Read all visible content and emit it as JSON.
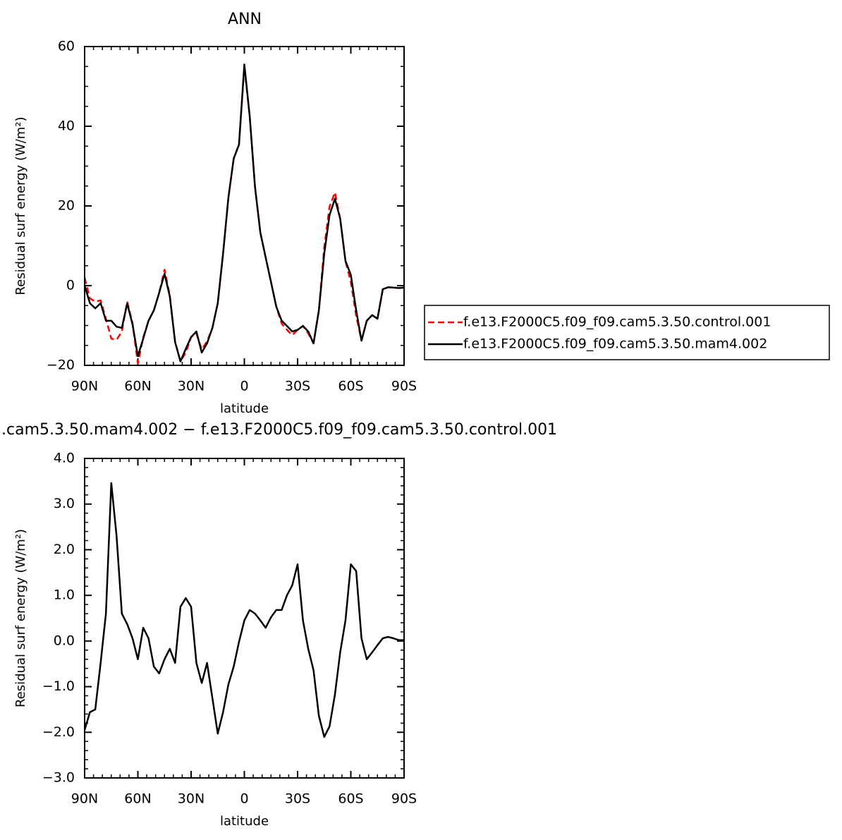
{
  "chart_data": [
    {
      "type": "line",
      "title": "ANN",
      "xlabel": "latitude",
      "ylabel": "Residual surf energy (W/m²)",
      "x": [
        90,
        87,
        84,
        81,
        78,
        75,
        72,
        69,
        66,
        63,
        60,
        57,
        54,
        51,
        48,
        45,
        42,
        39,
        36,
        33,
        30,
        27,
        24,
        21,
        18,
        15,
        12,
        9,
        6,
        3,
        0,
        -3,
        -6,
        -9,
        -12,
        -15,
        -18,
        -21,
        -24,
        -27,
        -30,
        -33,
        -36,
        -39,
        -42,
        -45,
        -48,
        -51,
        -54,
        -57,
        -60,
        -63,
        -66,
        -69,
        -72,
        -75,
        -78,
        -81,
        -84,
        -87,
        -90
      ],
      "series": [
        {
          "name": "f.e13.F2000C5.f09_f09.cam5.3.50.control.001",
          "color": "#ff0000",
          "dash": "dashed",
          "values": [
            2,
            -3.2,
            -4,
            -3.7,
            -8.3,
            -13.3,
            -13.6,
            -11.5,
            -4,
            -9.4,
            -19.5,
            -13,
            -8.8,
            -6.2,
            -1.8,
            4,
            -2.5,
            -14,
            -19,
            -16.8,
            -12.9,
            -12,
            -16,
            -14,
            -10.6,
            -4.4,
            8,
            22.1,
            31.9,
            35.4,
            55,
            42.5,
            24.8,
            13.3,
            7.1,
            0.9,
            -5.3,
            -9.5,
            -11.1,
            -12.4,
            -11.1,
            -10.1,
            -12,
            -14.5,
            -6.2,
            9.7,
            19.8,
            23.4,
            16.8,
            6.2,
            0.9,
            -7.6,
            -13.8,
            -8.8,
            -7.4,
            -8.3,
            -1,
            -0.4,
            -0.5,
            -0.6,
            -0.5
          ]
        },
        {
          "name": "f.e13.F2000C5.f09_f09.cam5.3.50.mam4.002",
          "color": "#000000",
          "dash": "solid",
          "values": [
            0,
            -4.4,
            -5.7,
            -4.4,
            -8.8,
            -8.8,
            -10.3,
            -10.6,
            -4.5,
            -9.7,
            -17.7,
            -13.3,
            -8.8,
            -6.2,
            -1.8,
            3,
            -2.7,
            -14.2,
            -19,
            -15.9,
            -12.9,
            -11.5,
            -16.8,
            -14.5,
            -10.6,
            -4.4,
            8,
            22.1,
            31.9,
            35.4,
            55.5,
            42.5,
            24.8,
            13.3,
            7.1,
            0.9,
            -5.3,
            -8.8,
            -10.1,
            -11.5,
            -11.1,
            -10.1,
            -11.5,
            -14.5,
            -6.2,
            8,
            17.7,
            21.8,
            16.8,
            6.2,
            2.7,
            -6.2,
            -13.8,
            -8.8,
            -7.4,
            -8.3,
            -0.9,
            -0.4,
            -0.5,
            -0.6,
            -0.5
          ]
        }
      ],
      "xlim": [
        90,
        -90
      ],
      "xticks": [
        {
          "value": 90,
          "label": "90N"
        },
        {
          "value": 60,
          "label": "60N"
        },
        {
          "value": 30,
          "label": "30N"
        },
        0,
        {
          "value": -30,
          "label": "30S"
        },
        {
          "value": -60,
          "label": "60S"
        },
        {
          "value": -90,
          "label": "90S"
        }
      ],
      "ylim": [
        -20,
        60
      ],
      "yticks": [
        {
          "value": -20,
          "label": "−20"
        },
        0,
        20,
        40,
        60
      ],
      "legend": "right"
    },
    {
      "type": "line",
      "title": ".cam5.3.50.mam4.002 − f.e13.F2000C5.f09_f09.cam5.3.50.control.001",
      "xlabel": "latitude",
      "ylabel": "Residual surf energy (W/m²)",
      "x": [
        90,
        87,
        84,
        81,
        78,
        75,
        72,
        69,
        66,
        63,
        60,
        57,
        54,
        51,
        48,
        45,
        42,
        39,
        36,
        33,
        30,
        27,
        24,
        21,
        18,
        15,
        12,
        9,
        6,
        3,
        0,
        -3,
        -6,
        -9,
        -12,
        -15,
        -18,
        -21,
        -24,
        -27,
        -30,
        -33,
        -36,
        -39,
        -42,
        -45,
        -48,
        -51,
        -54,
        -57,
        -60,
        -63,
        -66,
        -69,
        -72,
        -75,
        -78,
        -81,
        -84,
        -87,
        -90
      ],
      "series": [
        {
          "color": "#000000",
          "dash": "solid",
          "values": [
            -1.95,
            -1.56,
            -1.5,
            -0.48,
            0.6,
            3.46,
            2.3,
            0.6,
            0.37,
            0.06,
            -0.4,
            0.29,
            0.06,
            -0.56,
            -0.71,
            -0.4,
            -0.17,
            -0.48,
            0.75,
            0.94,
            0.75,
            -0.48,
            -0.92,
            -0.48,
            -1.25,
            -2.03,
            -1.56,
            -0.95,
            -0.56,
            -0.02,
            0.45,
            0.68,
            0.6,
            0.45,
            0.29,
            0.52,
            0.68,
            0.68,
            1,
            1.22,
            1.68,
            0.45,
            -0.17,
            -0.64,
            -1.64,
            -2.1,
            -1.87,
            -1.18,
            -0.25,
            0.45,
            1.68,
            1.53,
            0.06,
            -0.4,
            -0.25,
            -0.09,
            0.06,
            0.09,
            0.06,
            0.02,
            0.02
          ]
        }
      ],
      "xlim": [
        90,
        -90
      ],
      "xticks": [
        {
          "value": 90,
          "label": "90N"
        },
        {
          "value": 60,
          "label": "60N"
        },
        {
          "value": 30,
          "label": "30N"
        },
        0,
        {
          "value": -30,
          "label": "30S"
        },
        {
          "value": -60,
          "label": "60S"
        },
        {
          "value": -90,
          "label": "90S"
        }
      ],
      "ylim": [
        -3,
        4
      ],
      "yticks": [
        {
          "value": -3,
          "label": "−3.0"
        },
        {
          "value": -2,
          "label": "−2.0"
        },
        {
          "value": -1,
          "label": "−1.0"
        },
        {
          "value": 0,
          "label": "0.0"
        },
        {
          "value": 1,
          "label": "1.0"
        },
        {
          "value": 2,
          "label": "2.0"
        },
        {
          "value": 3,
          "label": "3.0"
        },
        {
          "value": 4,
          "label": "4.0"
        }
      ]
    }
  ]
}
